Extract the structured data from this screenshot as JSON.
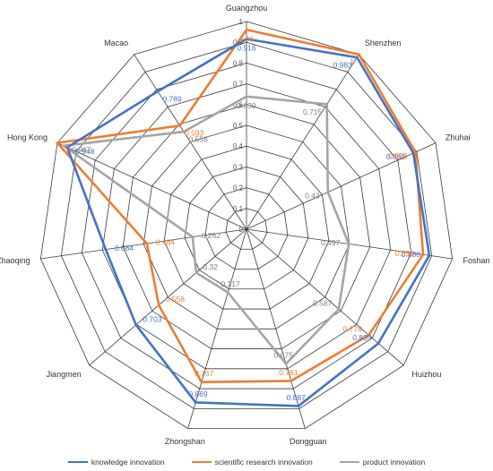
{
  "chart_data": {
    "type": "radar",
    "categories": [
      "Guangzhou",
      "Shenzhen",
      "Zhuhai",
      "Foshan",
      "Huizhou",
      "Dongguan",
      "Zhongshan",
      "Jiangmen",
      "Zhaoqing",
      "Hong Kong",
      "Macao"
    ],
    "rlim": [
      0,
      1
    ],
    "ticks": [
      "0",
      "0.1",
      "0.2",
      "0.3",
      "0.4",
      "0.5",
      "0.6",
      "0.7",
      "0.8",
      "0.9",
      "1"
    ],
    "grid": true,
    "legend_position": "bottom",
    "series": [
      {
        "name": "knowledge innovation",
        "color": "#4472c4",
        "values": [
          0.916,
          0.983,
          0.882,
          0.888,
          0.839,
          0.887,
          0.869,
          0.703,
          0.684,
          0.948,
          0.789
        ],
        "labels": [
          "0.916",
          "0.983",
          "0.882",
          "0.888",
          "0.839",
          "0.887",
          "0.869",
          "0.703",
          "0.684",
          "0.948",
          "0.789"
        ]
      },
      {
        "name": "scientific research innovation",
        "color": "#ed7d31",
        "values": [
          0.96,
          1,
          0.893,
          0.858,
          0.778,
          0.761,
          0.767,
          0.558,
          0.484,
          1,
          0.593
        ],
        "labels": [
          "0.96",
          "1",
          "0.893",
          "0.858",
          "0.778",
          "0.761",
          "0.767",
          "0.558",
          "0.484",
          "1",
          "0.593"
        ]
      },
      {
        "name": "product innovation",
        "color": "#a5a5a5",
        "values": [
          0.639,
          0.715,
          0.43,
          0.497,
          0.587,
          0.675,
          0.317,
          0.32,
          0.262,
          0.967,
          0.558
        ],
        "labels": [
          "0.639",
          "0.715",
          "0.43",
          "0.497",
          "0.587",
          "0.675",
          "0.317",
          "0.32",
          "0.262",
          "0.967",
          "0.558"
        ]
      }
    ]
  }
}
